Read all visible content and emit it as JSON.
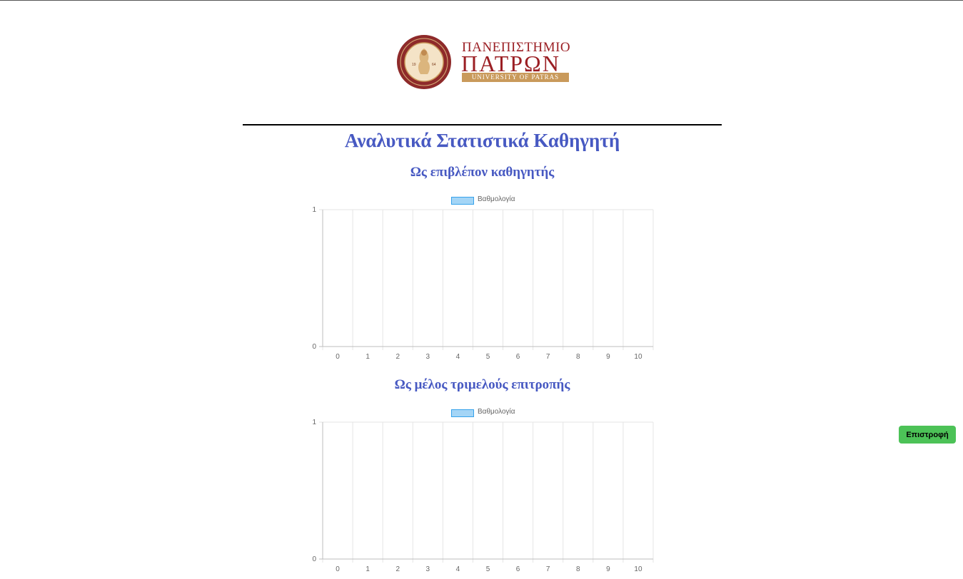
{
  "header": {
    "logo_line1": "ΠΑΝΕΠΙΣΤΗΜΙΟ",
    "logo_line2": "ΠΑΤΡΩΝ",
    "logo_line3": "UNIVERSITY OF PATRAS",
    "seal_year_left": "19",
    "seal_year_right": "64",
    "brand_color": "#9b1f24",
    "accent_color": "#c99a5b"
  },
  "page": {
    "title": "Αναλυτικά Στατιστικά Καθηγητή",
    "title_color": "#4759c2"
  },
  "sections": [
    {
      "title": "Ως επιβλέπον καθηγητής"
    },
    {
      "title": "Ως μέλος τριμελούς επιτροπής"
    }
  ],
  "chart_data": [
    {
      "type": "bar",
      "title": "",
      "legend": [
        "Βαθμολογία"
      ],
      "legend_position": "top",
      "categories": [
        "0",
        "1",
        "2",
        "3",
        "4",
        "5",
        "6",
        "7",
        "8",
        "9",
        "10"
      ],
      "series": [
        {
          "name": "Βαθμολογία",
          "values": [
            0,
            0,
            0,
            0,
            0,
            0,
            0,
            0,
            0,
            0,
            0
          ]
        }
      ],
      "ylim": [
        0,
        1
      ],
      "yticks": [
        "0",
        "1"
      ],
      "grid": true,
      "color": "#36a2eb"
    },
    {
      "type": "bar",
      "title": "",
      "legend": [
        "Βαθμολογία"
      ],
      "legend_position": "top",
      "categories": [
        "0",
        "1",
        "2",
        "3",
        "4",
        "5",
        "6",
        "7",
        "8",
        "9",
        "10"
      ],
      "series": [
        {
          "name": "Βαθμολογία",
          "values": [
            0,
            0,
            0,
            0,
            0,
            0,
            0,
            0,
            0,
            0,
            0
          ]
        }
      ],
      "ylim": [
        0,
        1
      ],
      "yticks": [
        "0",
        "1"
      ],
      "grid": true,
      "color": "#36a2eb"
    }
  ],
  "actions": {
    "back_label": "Επιστροφή",
    "back_color": "#4cc257"
  }
}
